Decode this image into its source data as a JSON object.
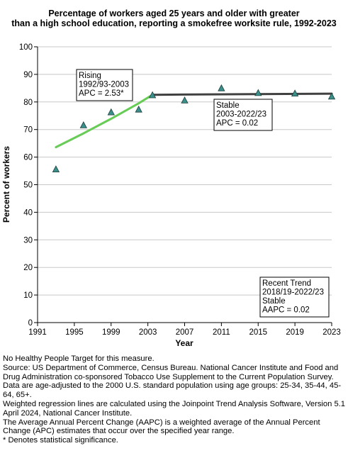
{
  "title_lines": [
    "Percentage of workers aged 25 years and older with greater",
    "than a high school education, reporting a smokefree worksite rule, 1992-2023"
  ],
  "footnotes": [
    "No Healthy People Target for this measure.",
    "Source: US Department of Commerce, Census Bureau. National Cancer Institute and Food and Drug Administration co-sponsored Tobacco Use Supplement to the Current Population Survey.",
    "Data are age-adjusted to the 2000 U.S. standard population using age groups: 25-34, 35-44, 45-64, 65+.",
    "Weighted regression lines are calculated using the Joinpoint Trend Analysis Software, Version 5.1 April 2024, National Cancer Institute.",
    "The Average Annual Percent Change (AAPC) is a weighted average of the Annual Percent Change (APC) estimates that occur over the specified year range.",
    "* Denotes statistical significance."
  ],
  "chart_data": {
    "type": "scatter",
    "title": "Percentage of workers aged 25 years and older with greater than a high school education, reporting a smokefree worksite rule, 1992-2023",
    "xlabel": "Year",
    "ylabel": "Percent of workers",
    "xlim": [
      1991,
      2023
    ],
    "ylim": [
      0,
      100
    ],
    "x_ticks": [
      1991,
      1995,
      1999,
      2003,
      2007,
      2011,
      2015,
      2019,
      2023
    ],
    "y_ticks": [
      0,
      10,
      20,
      30,
      40,
      50,
      60,
      70,
      80,
      90,
      100
    ],
    "grid": true,
    "points": {
      "marker": "triangle",
      "color": "#3a8f8a",
      "x": [
        1993,
        1996,
        1999,
        2002,
        2003.5,
        2007,
        2011,
        2015,
        2019,
        2023
      ],
      "y": [
        55.5,
        71.5,
        76.2,
        77.2,
        82.4,
        80.5,
        84.9,
        83.2,
        83.0,
        81.9
      ]
    },
    "trend_lines": [
      {
        "color": "#66cc55",
        "x": [
          1993,
          1996,
          1999,
          2002,
          2003.5
        ],
        "y": [
          63.6,
          68.6,
          73.9,
          79.5,
          82.6
        ]
      },
      {
        "color": "#404040",
        "x": [
          2003.5,
          2008,
          2013,
          2018,
          2023
        ],
        "y": [
          82.6,
          82.7,
          82.8,
          82.9,
          83.0
        ]
      }
    ],
    "annotations": [
      {
        "lines": [
          "Rising",
          "1992/93-2003",
          "APC =  2.53*"
        ]
      },
      {
        "lines": [
          "Stable",
          "2003-2022/23",
          "APC =  0.02"
        ]
      },
      {
        "lines": [
          "Recent Trend",
          "2018/19-2022/23",
          "Stable",
          "AAPC =  0.02"
        ]
      }
    ]
  }
}
